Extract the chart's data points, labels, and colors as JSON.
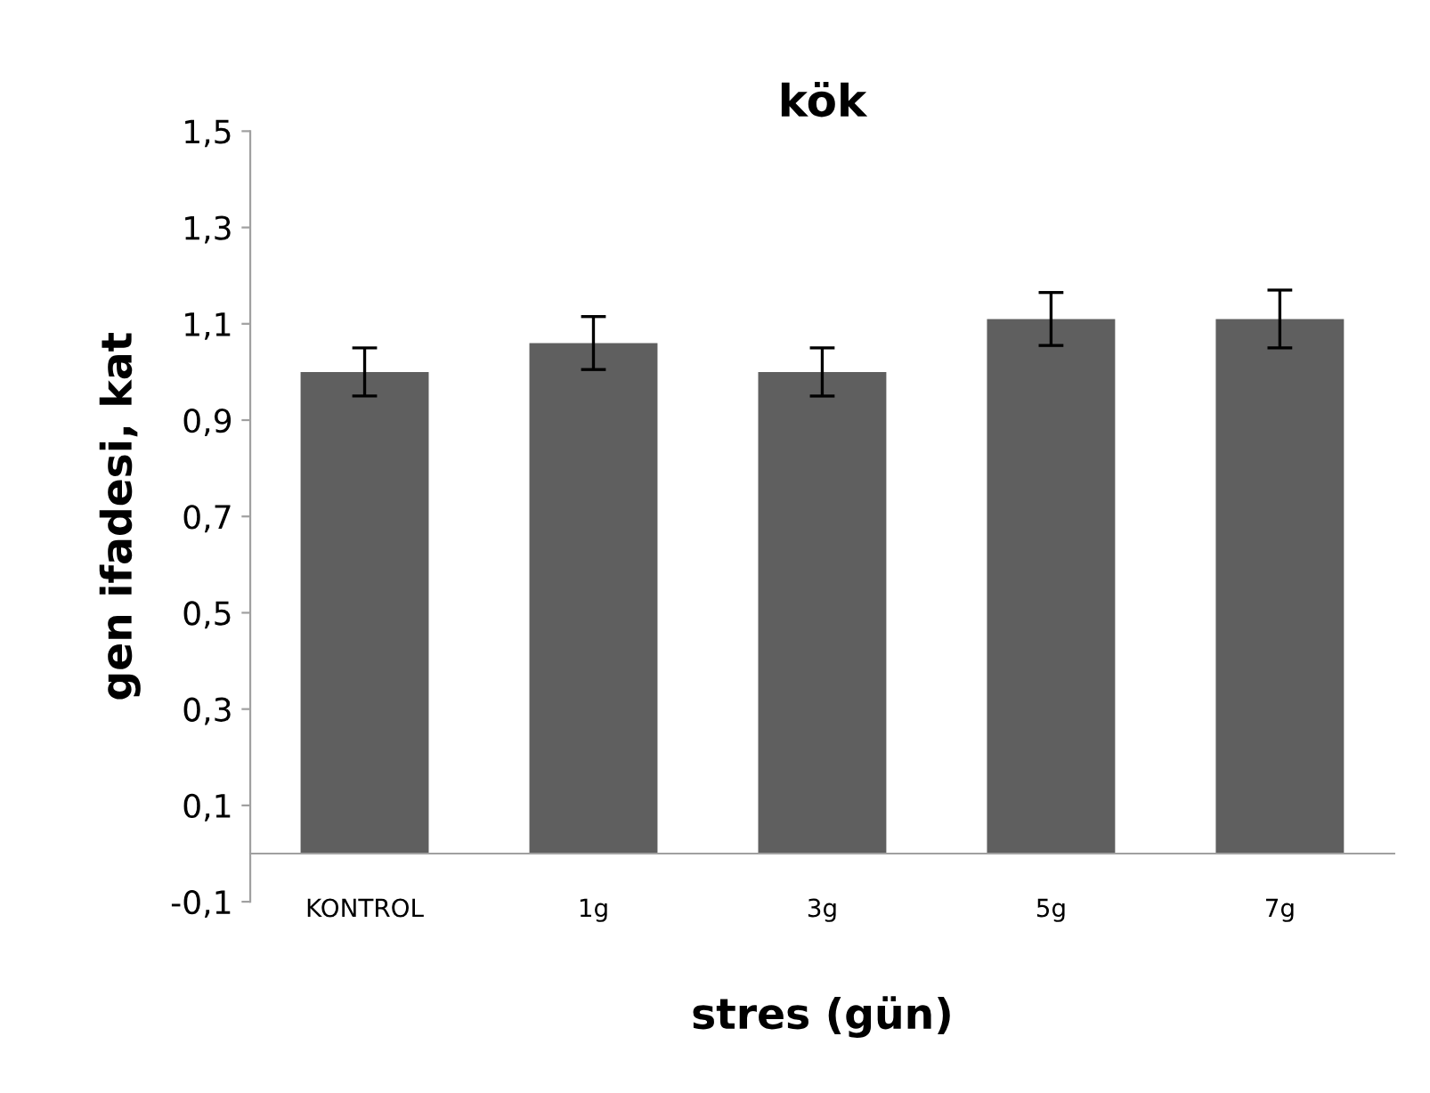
{
  "chart_data": {
    "type": "bar",
    "title": "kök",
    "xlabel": "stres (gün)",
    "ylabel": "gen ifadesi, kat",
    "categories": [
      "KONTROL",
      "1g",
      "3g",
      "5g",
      "7g"
    ],
    "values": [
      1.0,
      1.06,
      1.0,
      1.11,
      1.11
    ],
    "errors": [
      0.05,
      0.055,
      0.05,
      0.055,
      0.06
    ],
    "color": "#5f5f5f",
    "ylim": [
      -0.1,
      1.5
    ],
    "yticks": [
      {
        "value": -0.1,
        "label": "-0,1"
      },
      {
        "value": 0.1,
        "label": "0,1"
      },
      {
        "value": 0.3,
        "label": "0,3"
      },
      {
        "value": 0.5,
        "label": "0,5"
      },
      {
        "value": 0.7,
        "label": "0,7"
      },
      {
        "value": 0.9,
        "label": "0,9"
      },
      {
        "value": 1.1,
        "label": "1,1"
      },
      {
        "value": 1.3,
        "label": "1,3"
      },
      {
        "value": 1.5,
        "label": "1,5"
      }
    ],
    "grid": false,
    "legend": false
  }
}
